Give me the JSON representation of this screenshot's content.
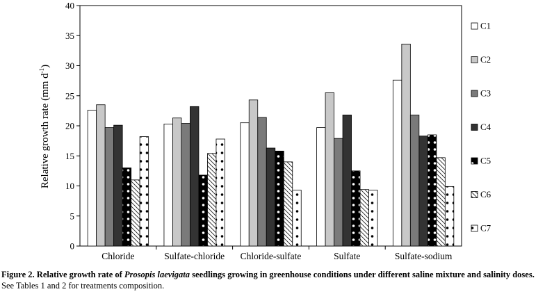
{
  "chart_data": {
    "type": "bar",
    "categories": [
      "Chloride",
      "Sulfate-chloride",
      "Chloride-sulfate",
      "Sulfate",
      "Sulfate-sodium"
    ],
    "series": [
      {
        "name": "C1",
        "values": [
          22.6,
          20.3,
          20.5,
          19.7,
          27.6
        ]
      },
      {
        "name": "C2",
        "values": [
          23.5,
          21.3,
          24.3,
          25.5,
          33.6
        ]
      },
      {
        "name": "C3",
        "values": [
          19.7,
          20.4,
          21.4,
          17.9,
          21.8
        ]
      },
      {
        "name": "C4",
        "values": [
          20.1,
          23.2,
          16.3,
          21.8,
          18.3
        ]
      },
      {
        "name": "C5",
        "values": [
          13.0,
          11.8,
          15.8,
          12.5,
          18.5
        ]
      },
      {
        "name": "C6",
        "values": [
          11.0,
          15.4,
          14.0,
          9.4,
          14.7
        ]
      },
      {
        "name": "C7",
        "values": [
          18.2,
          17.8,
          9.3,
          9.3,
          9.9
        ]
      }
    ],
    "ylim": [
      0,
      40
    ],
    "yticks": [
      0,
      5,
      10,
      15,
      20,
      25,
      30,
      35,
      40
    ],
    "ylabel_main": "Relative growth rate (mm d",
    "ylabel_sup": "-1",
    "ylabel_end": ")",
    "xlabel": "",
    "legend_position": "right",
    "grid": false
  },
  "caption": {
    "prefix": "Figure 2. Relative growth rate of ",
    "species": "Prosopis laevigata",
    "suffix": " seedlings growing in greenhouse conditions under different saline mixture and salinity doses.",
    "note": " See Tables 1 and 2 for treatments composition."
  }
}
